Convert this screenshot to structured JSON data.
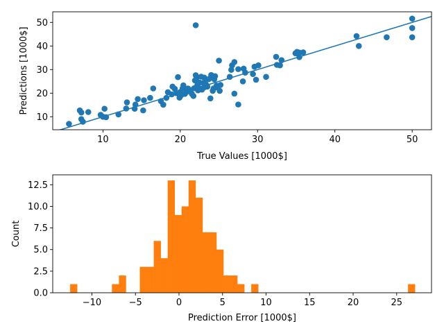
{
  "colors": {
    "scatter": "#1f77b4",
    "fit_line": "#1f77b4",
    "hist": "#ff7f0e",
    "axes": "#000000",
    "background": "#ffffff"
  },
  "chart_data": [
    {
      "type": "scatter",
      "title": "",
      "xlabel": "True Values [1000$]",
      "ylabel": "Predictions [1000$]",
      "xlim": [
        3.5,
        52.5
      ],
      "ylim": [
        4.5,
        54.5
      ],
      "xticks": [
        10,
        20,
        30,
        40,
        50
      ],
      "xtick_labels": [
        "10",
        "20",
        "30",
        "40",
        "50"
      ],
      "yticks": [
        10,
        20,
        30,
        40,
        50
      ],
      "ytick_labels": [
        "10",
        "20",
        "30",
        "40",
        "50"
      ],
      "grid": false,
      "line": {
        "x": [
          3.5,
          52.5
        ],
        "y": [
          3.5,
          52.5
        ]
      },
      "points": [
        [
          5.6,
          7.0
        ],
        [
          7.0,
          12.7
        ],
        [
          7.2,
          11.8
        ],
        [
          7.2,
          9.0
        ],
        [
          7.4,
          7.9
        ],
        [
          8.1,
          12.0
        ],
        [
          9.7,
          10.8
        ],
        [
          10.0,
          10.0
        ],
        [
          10.2,
          13.4
        ],
        [
          10.4,
          9.8
        ],
        [
          12.0,
          11.0
        ],
        [
          13.0,
          13.5
        ],
        [
          13.1,
          16.1
        ],
        [
          14.1,
          13.4
        ],
        [
          14.2,
          15.2
        ],
        [
          14.5,
          17.5
        ],
        [
          15.2,
          12.7
        ],
        [
          15.3,
          17.0
        ],
        [
          16.1,
          18.0
        ],
        [
          16.5,
          22.0
        ],
        [
          17.5,
          16.6
        ],
        [
          17.8,
          15.1
        ],
        [
          18.2,
          18.0
        ],
        [
          18.4,
          20.4
        ],
        [
          18.9,
          19.5
        ],
        [
          19.0,
          22.8
        ],
        [
          19.3,
          21.8
        ],
        [
          19.5,
          20.0
        ],
        [
          19.7,
          26.8
        ],
        [
          19.9,
          18.1
        ],
        [
          20.0,
          20.5
        ],
        [
          20.1,
          19.1
        ],
        [
          20.3,
          22.0
        ],
        [
          20.4,
          23.3
        ],
        [
          20.6,
          19.7
        ],
        [
          20.8,
          20.5
        ],
        [
          21.0,
          22.0
        ],
        [
          21.2,
          21.4
        ],
        [
          21.3,
          20.7
        ],
        [
          21.5,
          19.7
        ],
        [
          21.7,
          18.8
        ],
        [
          21.8,
          22.1
        ],
        [
          21.9,
          25.4
        ],
        [
          22.0,
          48.8
        ],
        [
          22.0,
          27.6
        ],
        [
          22.1,
          26.4
        ],
        [
          22.2,
          23.4
        ],
        [
          22.3,
          21.2
        ],
        [
          22.5,
          24.5
        ],
        [
          22.6,
          22.0
        ],
        [
          22.7,
          27.0
        ],
        [
          22.8,
          21.5
        ],
        [
          23.0,
          24.3
        ],
        [
          23.1,
          26.6
        ],
        [
          23.1,
          22.5
        ],
        [
          23.2,
          25.2
        ],
        [
          23.3,
          23.9
        ],
        [
          23.5,
          22.8
        ],
        [
          23.7,
          26.0
        ],
        [
          23.9,
          17.8
        ],
        [
          24.0,
          27.7
        ],
        [
          24.2,
          21.0
        ],
        [
          24.3,
          22.0
        ],
        [
          24.4,
          25.9
        ],
        [
          24.5,
          27.2
        ],
        [
          24.7,
          23.2
        ],
        [
          24.8,
          22.4
        ],
        [
          25.0,
          33.8
        ],
        [
          25.1,
          21.0
        ],
        [
          25.2,
          23.5
        ],
        [
          26.4,
          26.9
        ],
        [
          26.6,
          29.9
        ],
        [
          26.7,
          31.8
        ],
        [
          27.0,
          33.2
        ],
        [
          27.0,
          19.8
        ],
        [
          27.5,
          15.2
        ],
        [
          27.5,
          30.2
        ],
        [
          28.1,
          25.0
        ],
        [
          28.2,
          30.4
        ],
        [
          28.4,
          28.7
        ],
        [
          29.4,
          28.1
        ],
        [
          29.6,
          31.2
        ],
        [
          29.8,
          25.7
        ],
        [
          30.1,
          31.8
        ],
        [
          31.1,
          26.9
        ],
        [
          32.4,
          35.4
        ],
        [
          32.5,
          32.0
        ],
        [
          32.9,
          31.8
        ],
        [
          33.1,
          34.0
        ],
        [
          34.9,
          36.9
        ],
        [
          35.1,
          37.5
        ],
        [
          35.4,
          35.3
        ],
        [
          35.4,
          37.2
        ],
        [
          35.9,
          37.3
        ],
        [
          42.8,
          44.2
        ],
        [
          43.1,
          40.0
        ],
        [
          46.7,
          43.7
        ],
        [
          50.0,
          51.6
        ],
        [
          50.0,
          47.6
        ],
        [
          50.0,
          43.7
        ]
      ]
    },
    {
      "type": "bar",
      "title": "",
      "xlabel": "Prediction Error [1000$]",
      "ylabel": "Count",
      "xlim": [
        -14.5,
        29.0
      ],
      "ylim": [
        0,
        13.65
      ],
      "bin_width": 0.8,
      "xticks": [
        -10,
        -5,
        0,
        5,
        10,
        15,
        20,
        25
      ],
      "xtick_labels": [
        "−10",
        "−5",
        "0",
        "5",
        "10",
        "15",
        "20",
        "25"
      ],
      "yticks": [
        0,
        2.5,
        5,
        7.5,
        10,
        12.5
      ],
      "ytick_labels": [
        "0.0",
        "2.5",
        "5.0",
        "7.5",
        "10.0",
        "12.5"
      ],
      "grid": false,
      "bins": [
        [
          -12.5,
          1
        ],
        [
          -7.7,
          1
        ],
        [
          -6.9,
          2
        ],
        [
          -4.5,
          3
        ],
        [
          -3.7,
          3
        ],
        [
          -2.9,
          6
        ],
        [
          -2.1,
          4
        ],
        [
          -1.3,
          13
        ],
        [
          -0.5,
          9
        ],
        [
          0.3,
          10
        ],
        [
          1.1,
          13
        ],
        [
          1.9,
          11
        ],
        [
          2.7,
          7
        ],
        [
          3.5,
          7
        ],
        [
          4.3,
          5
        ],
        [
          5.1,
          2
        ],
        [
          5.9,
          2
        ],
        [
          6.7,
          1
        ],
        [
          8.3,
          1
        ],
        [
          26.3,
          1
        ]
      ]
    }
  ]
}
